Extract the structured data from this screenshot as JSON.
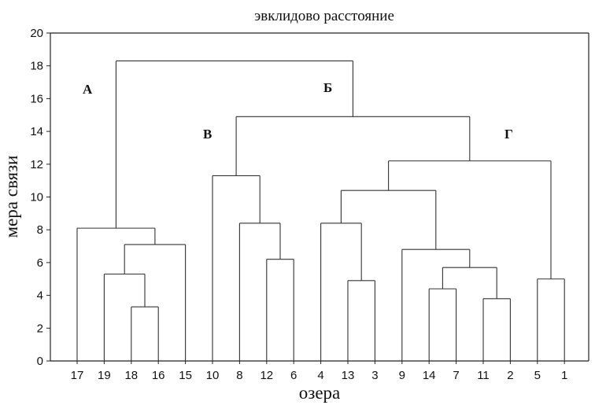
{
  "chart_data": {
    "type": "dendrogram",
    "title": "эвклидово расстояние",
    "xlabel": "озера",
    "ylabel": "мера связи",
    "ylim": [
      0,
      20
    ],
    "yticks": [
      0,
      2,
      4,
      6,
      8,
      10,
      12,
      14,
      16,
      18,
      20
    ],
    "leaves": [
      "17",
      "19",
      "18",
      "16",
      "15",
      "10",
      "8",
      "12",
      "6",
      "4",
      "13",
      "3",
      "9",
      "14",
      "7",
      "11",
      "2",
      "5",
      "1"
    ],
    "merges": [
      {
        "a": "18",
        "b": "16",
        "height": 3.3
      },
      {
        "a": "19",
        "b": "18+16",
        "height": 5.3
      },
      {
        "a": "19+18+16",
        "b": "15",
        "height": 7.1
      },
      {
        "a": "17",
        "b": "19+18+16+15",
        "height": 8.1
      },
      {
        "a": "12",
        "b": "6",
        "height": 6.2
      },
      {
        "a": "8",
        "b": "12+6",
        "height": 8.4
      },
      {
        "a": "10",
        "b": "8+12+6",
        "height": 11.3
      },
      {
        "a": "13",
        "b": "3",
        "height": 4.9
      },
      {
        "a": "4",
        "b": "13+3",
        "height": 8.4
      },
      {
        "a": "14",
        "b": "7",
        "height": 4.4
      },
      {
        "a": "11",
        "b": "2",
        "height": 3.8
      },
      {
        "a": "14+7",
        "b": "11+2",
        "height": 5.7
      },
      {
        "a": "9",
        "b": "14+7+11+2",
        "height": 6.8
      },
      {
        "a": "4+13+3",
        "b": "9+14+7+11+2",
        "height": 10.4
      },
      {
        "a": "5",
        "b": "1",
        "height": 5.0
      },
      {
        "a": "4..2",
        "b": "5+1",
        "height": 12.2
      },
      {
        "a": "10+8+12+6",
        "b": "4..1",
        "height": 14.9
      },
      {
        "a": "A",
        "b": "Б",
        "height": 18.3
      }
    ],
    "cluster_labels": [
      "А",
      "Б",
      "В",
      "Г"
    ]
  }
}
